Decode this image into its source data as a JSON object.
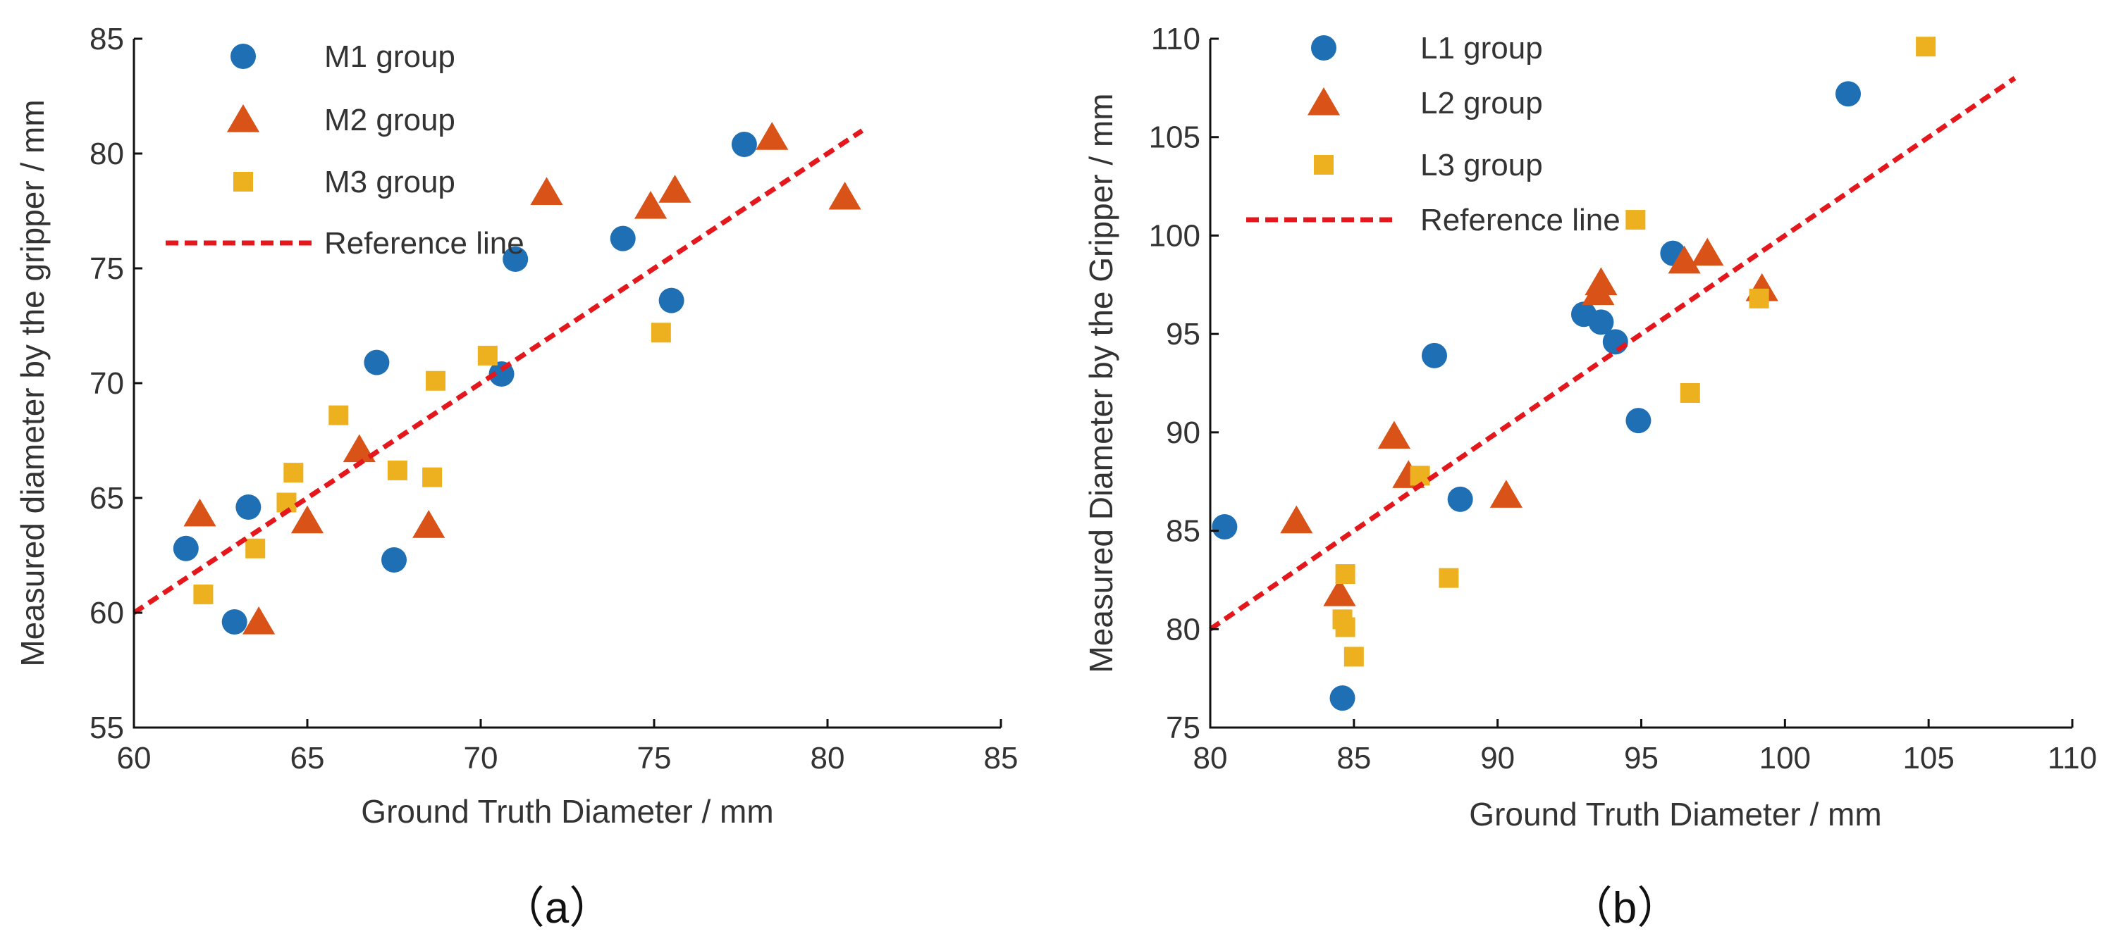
{
  "chart_data": [
    {
      "type": "scatter",
      "panel_label": "（a）",
      "xlabel": "Ground Truth Diameter / mm",
      "ylabel": "Measured diameter by the gripper / mm",
      "xlim": [
        60,
        85
      ],
      "ylim": [
        55,
        85
      ],
      "xticks": [
        60,
        65,
        70,
        75,
        80,
        85
      ],
      "yticks": [
        55,
        60,
        65,
        70,
        75,
        80,
        85
      ],
      "legend_position": "top-left",
      "series": [
        {
          "name": "M1 group",
          "marker": "circle",
          "color": "#1f6fb5",
          "points": [
            [
              61.5,
              62.8
            ],
            [
              62.9,
              59.6
            ],
            [
              63.3,
              64.6
            ],
            [
              67.0,
              70.9
            ],
            [
              67.5,
              62.3
            ],
            [
              70.6,
              70.4
            ],
            [
              71.0,
              75.4
            ],
            [
              74.1,
              76.3
            ],
            [
              75.5,
              73.6
            ],
            [
              77.6,
              80.4
            ]
          ]
        },
        {
          "name": "M2 group",
          "marker": "triangle",
          "color": "#d95319",
          "points": [
            [
              61.9,
              64.3
            ],
            [
              63.6,
              59.6
            ],
            [
              65.0,
              64.0
            ],
            [
              66.5,
              67.1
            ],
            [
              68.5,
              63.8
            ],
            [
              71.9,
              78.3
            ],
            [
              74.9,
              77.7
            ],
            [
              75.6,
              78.4
            ],
            [
              78.4,
              80.7
            ],
            [
              80.5,
              78.1
            ]
          ]
        },
        {
          "name": "M3 group",
          "marker": "square",
          "color": "#edb120",
          "points": [
            [
              62.0,
              60.8
            ],
            [
              63.5,
              62.8
            ],
            [
              64.4,
              64.8
            ],
            [
              64.6,
              66.1
            ],
            [
              65.9,
              68.6
            ],
            [
              67.6,
              66.2
            ],
            [
              68.6,
              65.9
            ],
            [
              68.7,
              70.1
            ],
            [
              70.2,
              71.2
            ],
            [
              75.2,
              72.2
            ]
          ]
        },
        {
          "name": "Reference line",
          "type": "line",
          "dashed": true,
          "color": "#e3171c",
          "points": [
            [
              60,
              60
            ],
            [
              81,
              81
            ]
          ]
        }
      ]
    },
    {
      "type": "scatter",
      "panel_label": "（b）",
      "xlabel": "Ground Truth Diameter / mm",
      "ylabel": "Measured Diameter by the Gripper / mm",
      "xlim": [
        80,
        110
      ],
      "ylim": [
        75,
        110
      ],
      "xticks": [
        80,
        85,
        90,
        95,
        100,
        105,
        110
      ],
      "yticks": [
        75,
        80,
        85,
        90,
        95,
        100,
        105,
        110
      ],
      "legend_position": "top-left",
      "series": [
        {
          "name": "L1 group",
          "marker": "circle",
          "color": "#1f6fb5",
          "points": [
            [
              80.5,
              85.2
            ],
            [
              84.6,
              76.5
            ],
            [
              87.8,
              93.9
            ],
            [
              88.7,
              86.6
            ],
            [
              93.0,
              96.0
            ],
            [
              93.6,
              95.6
            ],
            [
              94.1,
              94.6
            ],
            [
              94.9,
              90.6
            ],
            [
              96.1,
              99.1
            ],
            [
              102.2,
              107.2
            ]
          ]
        },
        {
          "name": "L2 group",
          "marker": "triangle",
          "color": "#d95319",
          "points": [
            [
              83.0,
              85.5
            ],
            [
              84.5,
              81.8
            ],
            [
              86.4,
              89.8
            ],
            [
              86.9,
              87.8
            ],
            [
              90.3,
              86.8
            ],
            [
              93.5,
              97.1
            ],
            [
              93.6,
              97.6
            ],
            [
              96.5,
              98.7
            ],
            [
              97.3,
              99.1
            ],
            [
              99.2,
              97.3
            ]
          ]
        },
        {
          "name": "L3 group",
          "marker": "square",
          "color": "#edb120",
          "points": [
            [
              84.6,
              80.5
            ],
            [
              84.7,
              82.8
            ],
            [
              84.7,
              80.1
            ],
            [
              85.0,
              78.6
            ],
            [
              87.3,
              87.8
            ],
            [
              88.3,
              82.6
            ],
            [
              94.8,
              100.8
            ],
            [
              96.7,
              92.0
            ],
            [
              99.1,
              96.8
            ],
            [
              104.9,
              109.6
            ]
          ]
        },
        {
          "name": "Reference line",
          "type": "line",
          "dashed": true,
          "color": "#e3171c",
          "points": [
            [
              80,
              80
            ],
            [
              108,
              108
            ]
          ]
        }
      ]
    }
  ]
}
